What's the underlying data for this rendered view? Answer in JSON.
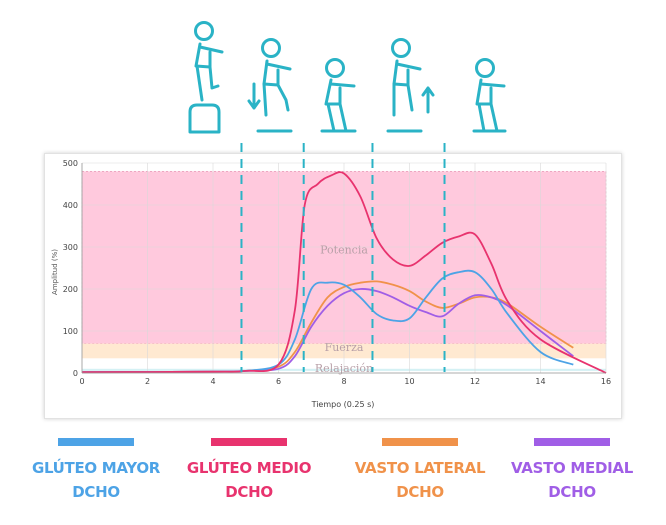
{
  "chart_data": {
    "type": "line",
    "xlabel": "Tiempo (0.25 s)",
    "ylabel": "Amplitud (%)",
    "xlim": [
      0,
      16
    ],
    "ylim": [
      0,
      500
    ],
    "xticks": [
      "0",
      "2",
      "4",
      "6",
      "8",
      "10",
      "12",
      "14",
      "16"
    ],
    "yticks": [
      "0",
      "100",
      "200",
      "300",
      "400",
      "500"
    ],
    "grid": true,
    "bands": [
      {
        "label": "Potencia",
        "from": 70,
        "to": 480,
        "color": "#ffc3d9"
      },
      {
        "label": "Fuerza",
        "from": 35,
        "to": 70,
        "color": "#ffe7cc"
      },
      {
        "label": "Relajación",
        "from": 5,
        "to": 10,
        "color": "#cfeff3"
      }
    ],
    "phase_markers": [
      4.9,
      6.8,
      8.9,
      11.1
    ],
    "series": [
      {
        "name": "GLÚTEO MAYOR",
        "name2": "DCHO",
        "color": "#4da3e6",
        "x": [
          0,
          4,
          5,
          6,
          6.5,
          7,
          7.5,
          8,
          8.5,
          9,
          9.5,
          10,
          10.5,
          11,
          11.5,
          12,
          12.5,
          13,
          14,
          15
        ],
        "y": [
          2,
          3,
          5,
          20,
          80,
          200,
          215,
          210,
          180,
          140,
          125,
          130,
          180,
          225,
          240,
          240,
          200,
          140,
          50,
          20
        ]
      },
      {
        "name": "GLÚTEO MEDIO",
        "name2": "DCHO",
        "color": "#e8336e",
        "x": [
          0,
          4,
          5,
          6,
          6.5,
          6.8,
          7.2,
          7.6,
          8,
          8.5,
          9,
          9.5,
          10,
          10.5,
          11,
          11.5,
          12,
          12.5,
          13,
          14,
          16
        ],
        "y": [
          2,
          3,
          5,
          20,
          150,
          400,
          450,
          470,
          475,
          420,
          320,
          270,
          255,
          280,
          310,
          325,
          330,
          260,
          170,
          80,
          0
        ]
      },
      {
        "name": "VASTO LATERAL",
        "name2": "DCHO",
        "color": "#f0924a",
        "x": [
          0,
          4,
          5,
          6,
          6.5,
          7,
          7.5,
          8,
          8.5,
          9,
          9.5,
          10,
          10.5,
          11,
          11.5,
          12,
          12.5,
          13,
          14,
          15
        ],
        "y": [
          2,
          3,
          5,
          15,
          50,
          120,
          180,
          205,
          215,
          218,
          210,
          195,
          170,
          155,
          165,
          180,
          180,
          165,
          110,
          60
        ]
      },
      {
        "name": "VASTO MEDIAL",
        "name2": "DCHO",
        "color": "#a05ee6",
        "x": [
          0,
          4,
          5,
          6,
          6.5,
          7,
          7.5,
          8,
          8.5,
          9,
          9.5,
          10,
          10.5,
          11,
          11.5,
          12,
          12.5,
          13,
          14,
          15
        ],
        "y": [
          2,
          3,
          5,
          10,
          40,
          110,
          160,
          190,
          200,
          195,
          180,
          160,
          145,
          135,
          165,
          185,
          180,
          160,
          100,
          40
        ]
      }
    ]
  },
  "figure_icons": [
    "person-step-up-icon",
    "person-down-arrow-icon",
    "person-standing-icon",
    "person-up-arrow-icon",
    "person-walking-icon"
  ],
  "colors": {
    "icon": "#2ab3c6",
    "dash": "#2ab3c6"
  }
}
